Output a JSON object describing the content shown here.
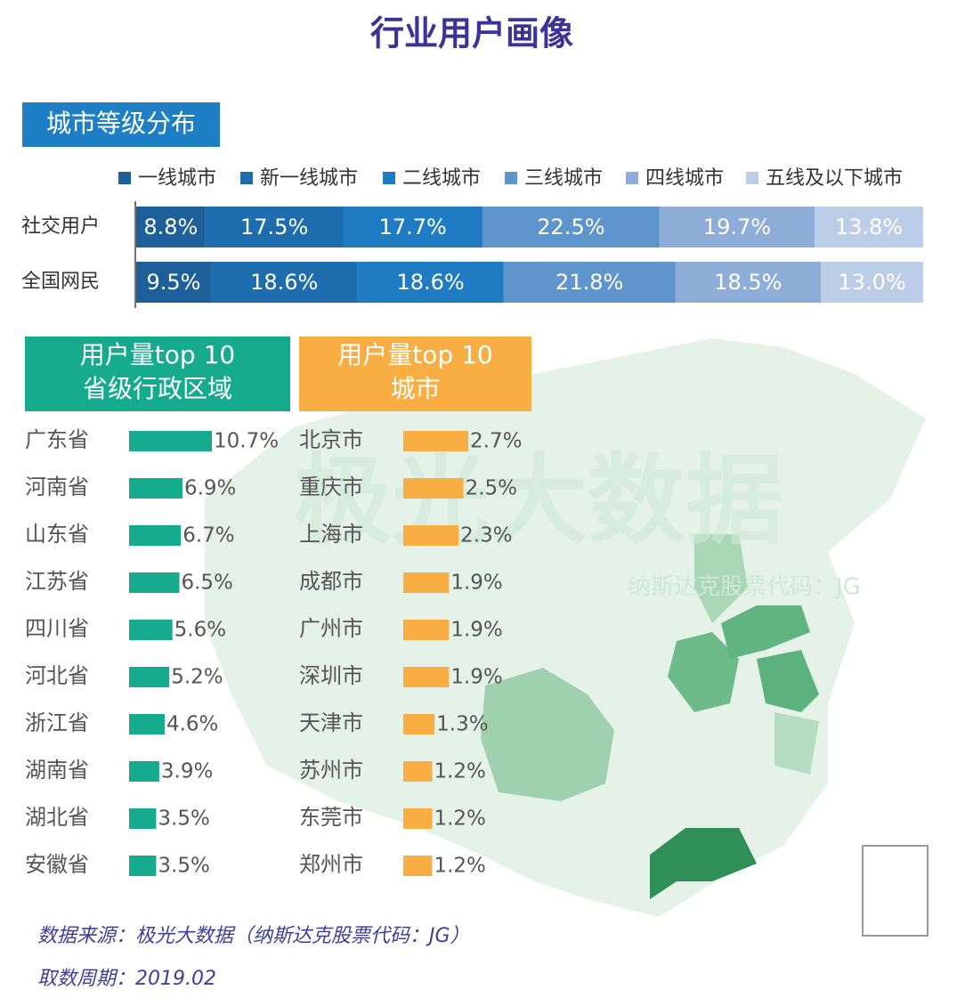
{
  "title": "行业用户画像",
  "watermark": {
    "brand": "极光大数据",
    "code": "纳斯达克股票代码：JG"
  },
  "footer": {
    "source": "数据来源：极光大数据（纳斯达克股票代码：JG）",
    "period": "取数周期：2019.02"
  },
  "chart_data": [
    {
      "type": "bar",
      "orientation": "horizontal",
      "stacked": true,
      "title": "城市等级分布",
      "categories": [
        "社交用户",
        "全国网民"
      ],
      "series": [
        {
          "name": "一线城市",
          "color": "#1c5f99",
          "values": [
            8.8,
            9.5
          ],
          "value_labels": [
            "8.8%",
            "9.5%"
          ]
        },
        {
          "name": "新一线城市",
          "color": "#1e6dae",
          "values": [
            17.5,
            18.6
          ],
          "value_labels": [
            "17.5%",
            "18.6%"
          ]
        },
        {
          "name": "二线城市",
          "color": "#1f7cc3",
          "values": [
            17.7,
            18.6
          ],
          "value_labels": [
            "17.7%",
            "18.6%"
          ]
        },
        {
          "name": "三线城市",
          "color": "#5f95cd",
          "values": [
            22.5,
            21.8
          ],
          "value_labels": [
            "22.5%",
            "21.8%"
          ]
        },
        {
          "name": "四线城市",
          "color": "#8eaed9",
          "values": [
            19.7,
            18.5
          ],
          "value_labels": [
            "19.7%",
            "18.5%"
          ]
        },
        {
          "name": "五线及以下城市",
          "color": "#bccde7",
          "values": [
            13.8,
            13.0
          ],
          "value_labels": [
            "13.8%",
            "13.0%"
          ]
        }
      ]
    },
    {
      "type": "bar",
      "orientation": "horizontal",
      "title": [
        "用户量top 10",
        "省级行政区域"
      ],
      "color": "#17ab8d",
      "categories": [
        "广东省",
        "河南省",
        "山东省",
        "江苏省",
        "四川省",
        "河北省",
        "浙江省",
        "湖南省",
        "湖北省",
        "安徽省"
      ],
      "values": [
        10.7,
        6.9,
        6.7,
        6.5,
        5.6,
        5.2,
        4.6,
        3.9,
        3.5,
        3.5
      ],
      "value_labels": [
        "10.7%",
        "6.9%",
        "6.7%",
        "6.5%",
        "5.6%",
        "5.2%",
        "4.6%",
        "3.9%",
        "3.5%",
        "3.5%"
      ]
    },
    {
      "type": "bar",
      "orientation": "horizontal",
      "title": [
        "用户量top 10",
        "城市"
      ],
      "color": "#f8ae42",
      "categories": [
        "北京市",
        "重庆市",
        "上海市",
        "成都市",
        "广州市",
        "深圳市",
        "天津市",
        "苏州市",
        "东莞市",
        "郑州市"
      ],
      "values": [
        2.7,
        2.5,
        2.3,
        1.9,
        1.9,
        1.9,
        1.3,
        1.2,
        1.2,
        1.2
      ],
      "value_labels": [
        "2.7%",
        "2.5%",
        "2.3%",
        "1.9%",
        "1.9%",
        "1.9%",
        "1.3%",
        "1.2%",
        "1.2%",
        "1.2%"
      ]
    }
  ]
}
